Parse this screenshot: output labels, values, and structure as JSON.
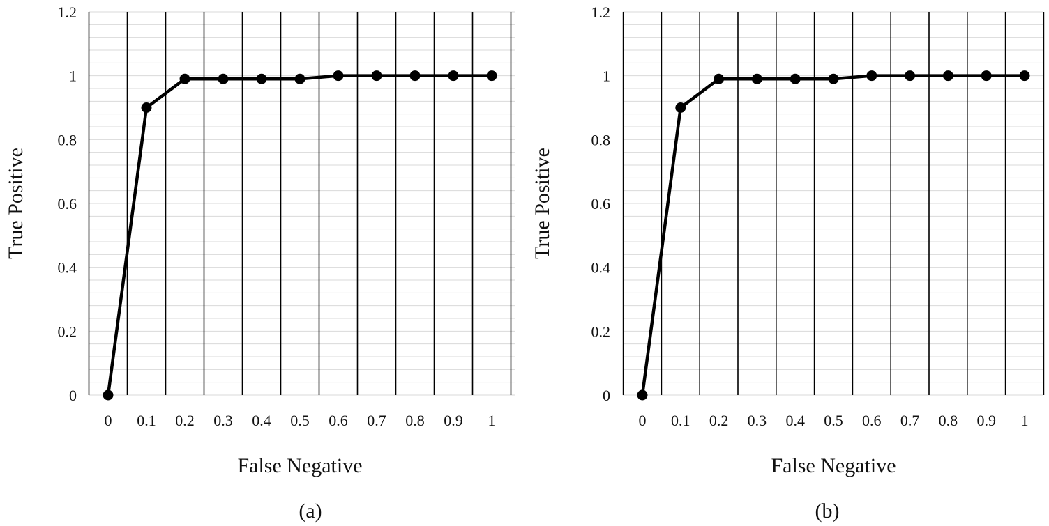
{
  "chart_data": [
    {
      "type": "line",
      "caption": "(a)",
      "xlabel": "False Negative",
      "ylabel": "True Positive",
      "x": [
        0,
        0.1,
        0.2,
        0.3,
        0.4,
        0.5,
        0.6,
        0.7,
        0.8,
        0.9,
        1
      ],
      "x_tick_labels": [
        "0",
        "0.1",
        "0.2",
        "0.3",
        "0.4",
        "0.5",
        "0.6",
        "0.7",
        "0.8",
        "0.9",
        "1"
      ],
      "y_tick_labels": [
        "0",
        "0.2",
        "0.4",
        "0.6",
        "0.8",
        "1",
        "1.2"
      ],
      "ylim": [
        0,
        1.2
      ],
      "series": [
        {
          "values": [
            0,
            0.9,
            0.99,
            0.99,
            0.99,
            0.99,
            1.0,
            1.0,
            1.0,
            1.0,
            1.0
          ]
        }
      ],
      "grid": true,
      "colors": {
        "line": "#000000",
        "vgrid": "#000000",
        "hgrid": "#d9d9d9"
      }
    },
    {
      "type": "line",
      "caption": "(b)",
      "xlabel": "False Negative",
      "ylabel": "True Positive",
      "x": [
        0,
        0.1,
        0.2,
        0.3,
        0.4,
        0.5,
        0.6,
        0.7,
        0.8,
        0.9,
        1
      ],
      "x_tick_labels": [
        "0",
        "0.1",
        "0.2",
        "0.3",
        "0.4",
        "0.5",
        "0.6",
        "0.7",
        "0.8",
        "0.9",
        "1"
      ],
      "y_tick_labels": [
        "0",
        "0.2",
        "0.4",
        "0.6",
        "0.8",
        "1",
        "1.2"
      ],
      "ylim": [
        0,
        1.2
      ],
      "series": [
        {
          "values": [
            0,
            0.9,
            0.99,
            0.99,
            0.99,
            0.99,
            1.0,
            1.0,
            1.0,
            1.0,
            1.0
          ]
        }
      ],
      "grid": true,
      "colors": {
        "line": "#000000",
        "vgrid": "#000000",
        "hgrid": "#d9d9d9"
      }
    }
  ]
}
